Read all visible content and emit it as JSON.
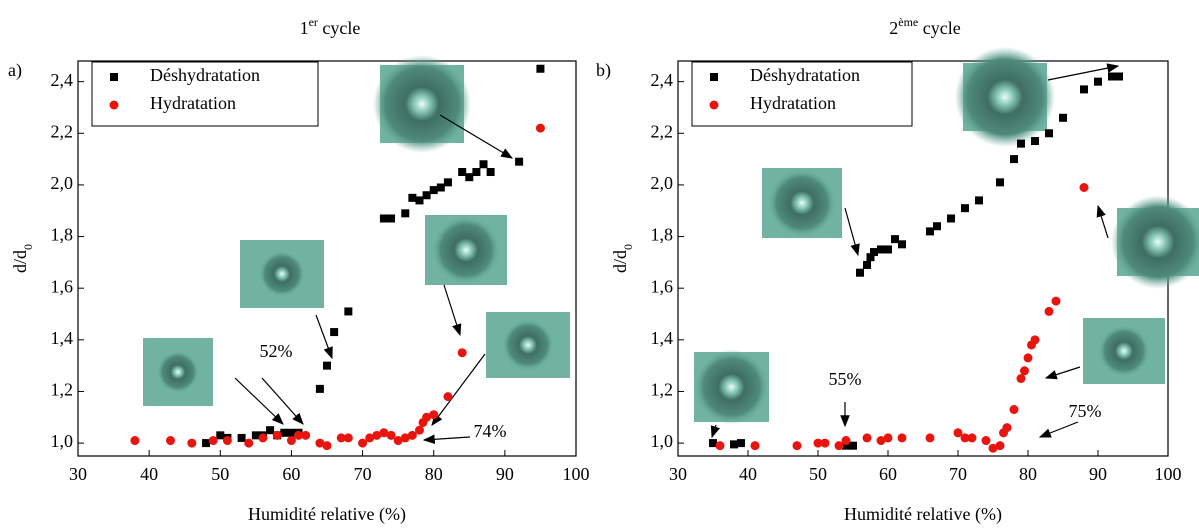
{
  "chart_data": [
    {
      "type": "scatter",
      "panel_label": "a)",
      "title": [
        "1",
        "er",
        " cycle"
      ],
      "x_label": "Humidité relative (%)",
      "y_label": [
        "d/d",
        "0"
      ],
      "xlim": [
        30,
        100
      ],
      "xticks": [
        30,
        40,
        50,
        60,
        70,
        80,
        90,
        100
      ],
      "ylim": [
        0.95,
        2.48
      ],
      "yticks": [
        {
          "value": 1.0,
          "label": "1,0"
        },
        {
          "value": 1.2,
          "label": "1,2"
        },
        {
          "value": 1.4,
          "label": "1,4"
        },
        {
          "value": 1.6,
          "label": "1,6"
        },
        {
          "value": 1.8,
          "label": "1,8"
        },
        {
          "value": 2.0,
          "label": "2,0"
        },
        {
          "value": 2.2,
          "label": "2,2"
        },
        {
          "value": 2.4,
          "label": "2,4"
        }
      ],
      "legend": "top-left",
      "series": [
        {
          "name": "Déshydratation",
          "color": "#000000",
          "marker": "square",
          "x": [
            48,
            50,
            51,
            53,
            55,
            56,
            57,
            58,
            59,
            60,
            61,
            64,
            65,
            66,
            68,
            73,
            74,
            76,
            77,
            78,
            79,
            80,
            81,
            82,
            84,
            85,
            86,
            87,
            88,
            92,
            95
          ],
          "values": [
            1.0,
            1.03,
            1.02,
            1.02,
            1.03,
            1.03,
            1.05,
            1.03,
            1.04,
            1.04,
            1.04,
            1.21,
            1.3,
            1.43,
            1.51,
            1.87,
            1.87,
            1.89,
            1.95,
            1.94,
            1.96,
            1.98,
            1.99,
            2.01,
            2.05,
            2.03,
            2.05,
            2.08,
            2.05,
            2.09,
            2.45
          ]
        },
        {
          "name": "Hydratation",
          "color": "#e8150f",
          "marker": "circle",
          "x": [
            38,
            43,
            46,
            49,
            51,
            54,
            56,
            58,
            60,
            61,
            62,
            64,
            65,
            67,
            68,
            70,
            71,
            72,
            73,
            74,
            75,
            76,
            77,
            78,
            78.5,
            79,
            80,
            82,
            84,
            95
          ],
          "values": [
            1.01,
            1.01,
            1.0,
            1.01,
            1.01,
            1.0,
            1.02,
            1.03,
            1.01,
            1.03,
            1.03,
            1.0,
            0.99,
            1.02,
            1.02,
            1.0,
            1.02,
            1.03,
            1.04,
            1.03,
            1.01,
            1.02,
            1.03,
            1.05,
            1.08,
            1.1,
            1.11,
            1.18,
            1.35,
            2.22
          ]
        }
      ],
      "annotations": [
        "52%",
        "74%"
      ]
    },
    {
      "type": "scatter",
      "panel_label": "b)",
      "title": [
        "2",
        "ème",
        " cycle"
      ],
      "x_label": "Humidité relative (%)",
      "y_label": [
        "d/d",
        "0"
      ],
      "xlim": [
        30,
        100
      ],
      "xticks": [
        30,
        40,
        50,
        60,
        70,
        80,
        90,
        100
      ],
      "ylim": [
        0.95,
        2.48
      ],
      "yticks": [
        {
          "value": 1.0,
          "label": "1,0"
        },
        {
          "value": 1.2,
          "label": "1,2"
        },
        {
          "value": 1.4,
          "label": "1,4"
        },
        {
          "value": 1.6,
          "label": "1,6"
        },
        {
          "value": 1.8,
          "label": "1,8"
        },
        {
          "value": 2.0,
          "label": "2,0"
        },
        {
          "value": 2.2,
          "label": "2,2"
        },
        {
          "value": 2.4,
          "label": "2,4"
        }
      ],
      "legend": "top-left",
      "series": [
        {
          "name": "Déshydratation",
          "color": "#000000",
          "marker": "square",
          "x": [
            35,
            38,
            39,
            54,
            55,
            56,
            57,
            57.5,
            58,
            59,
            60,
            61,
            62,
            66,
            67,
            69,
            71,
            73,
            76,
            78,
            79,
            81,
            83,
            85,
            88,
            90,
            92,
            93
          ],
          "values": [
            1.0,
            0.995,
            1.0,
            0.99,
            0.99,
            1.66,
            1.69,
            1.72,
            1.74,
            1.75,
            1.75,
            1.79,
            1.77,
            1.82,
            1.84,
            1.87,
            1.91,
            1.94,
            2.01,
            2.1,
            2.16,
            2.17,
            2.2,
            2.26,
            2.37,
            2.4,
            2.42,
            2.42
          ]
        },
        {
          "name": "Hydratation",
          "color": "#e8150f",
          "marker": "circle",
          "x": [
            36,
            41,
            47,
            50,
            51,
            53,
            54,
            57,
            59,
            60,
            62,
            66,
            70,
            71,
            72,
            74,
            75,
            76,
            76.5,
            77,
            78,
            79,
            79.5,
            80,
            80.5,
            81,
            83,
            84,
            88
          ],
          "values": [
            0.99,
            0.99,
            0.99,
            1.0,
            1.0,
            0.99,
            1.01,
            1.02,
            1.01,
            1.02,
            1.02,
            1.02,
            1.04,
            1.02,
            1.02,
            1.01,
            0.98,
            0.99,
            1.04,
            1.06,
            1.13,
            1.25,
            1.28,
            1.33,
            1.38,
            1.4,
            1.51,
            1.55,
            1.99
          ]
        }
      ],
      "annotations": [
        "55%",
        "75%"
      ]
    }
  ]
}
